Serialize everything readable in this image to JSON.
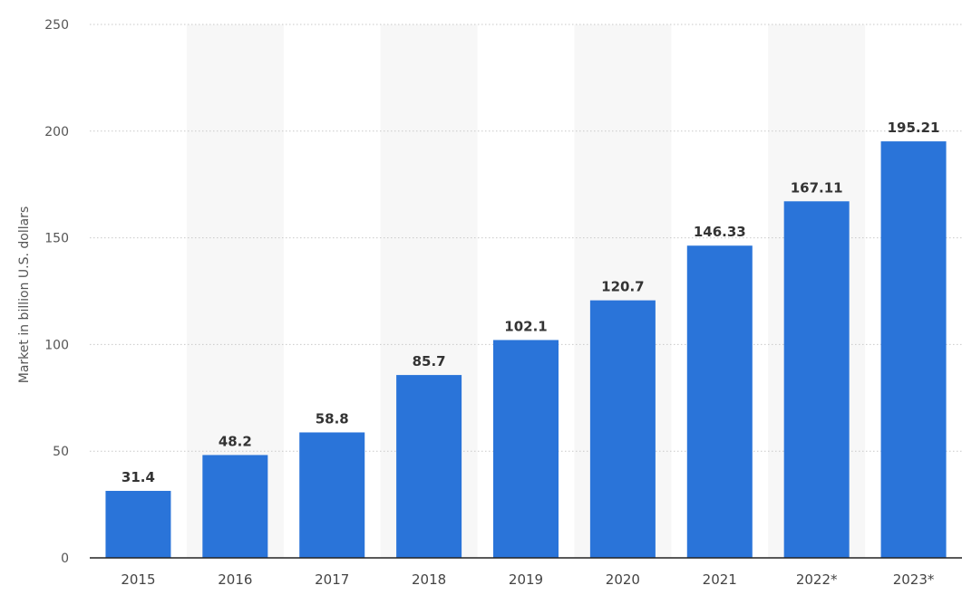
{
  "chart_data": {
    "type": "bar",
    "title": "",
    "xlabel": "",
    "ylabel": "Market in billion U.S. dollars",
    "categories": [
      "2015",
      "2016",
      "2017",
      "2018",
      "2019",
      "2020",
      "2021",
      "2022*",
      "2023*"
    ],
    "values": [
      31.4,
      48.2,
      58.8,
      85.7,
      102.1,
      120.7,
      146.33,
      167.11,
      195.21
    ],
    "value_labels": [
      "31.4",
      "48.2",
      "58.8",
      "85.7",
      "102.1",
      "120.7",
      "146.33",
      "167.11",
      "195.21"
    ],
    "ylim": [
      0,
      250
    ],
    "yticks": [
      0,
      50,
      100,
      150,
      200,
      250
    ],
    "grid": true,
    "legend": "none",
    "bar_color": "#2a74d9",
    "band_color": "#f7f7f7"
  }
}
